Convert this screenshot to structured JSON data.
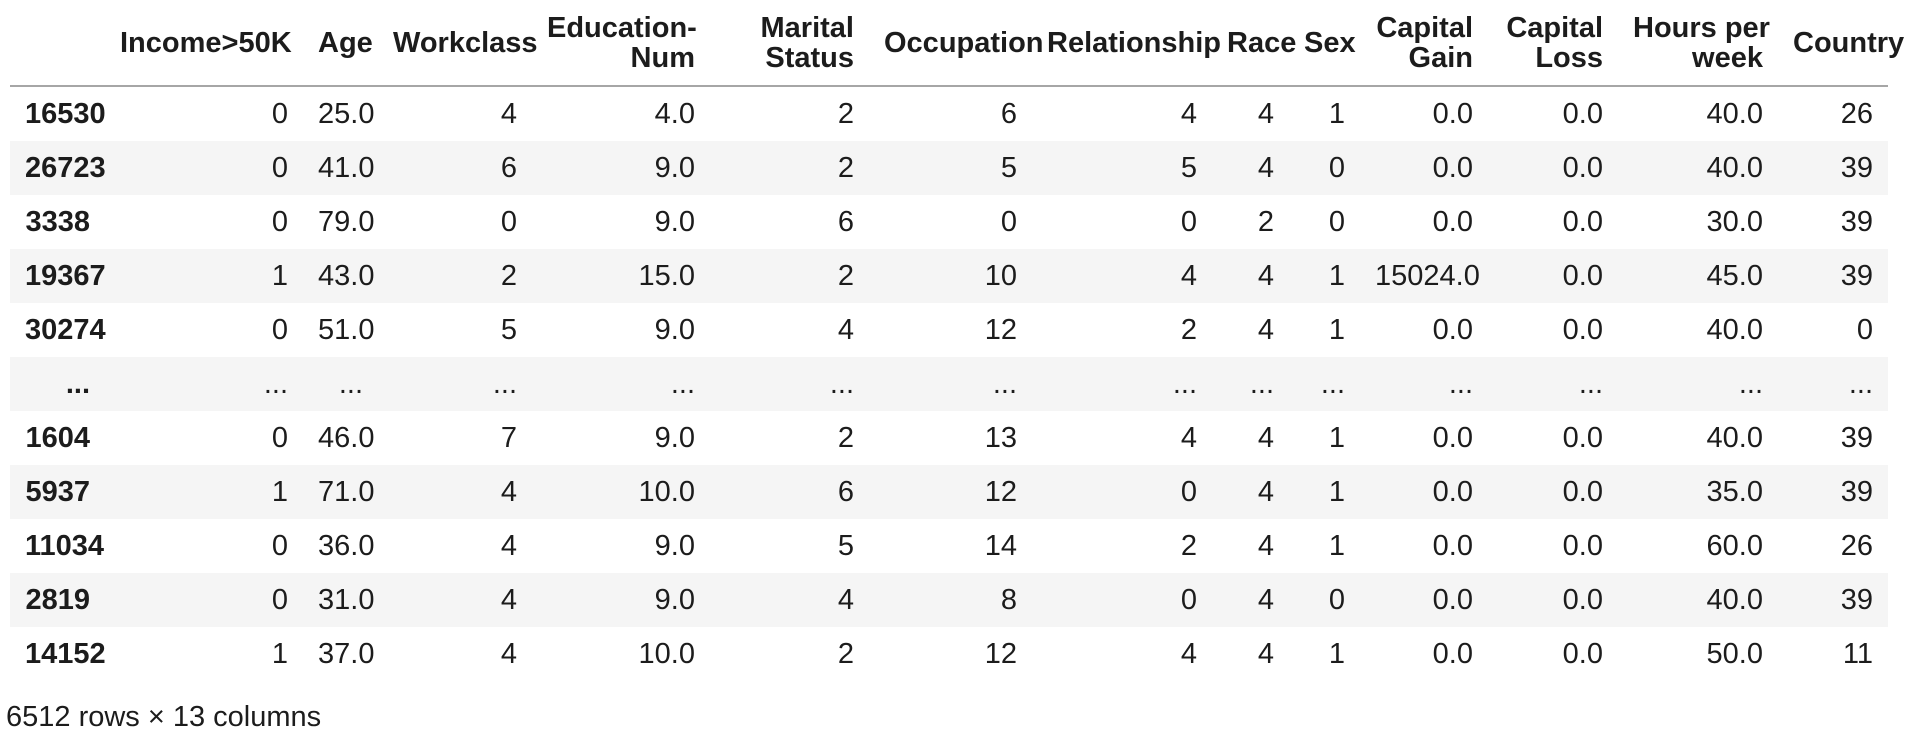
{
  "dataframe": {
    "index_header": "",
    "columns": [
      "Income>50K",
      "Age",
      "Workclass",
      "Education-\nNum",
      "Marital\nStatus",
      "Occupation",
      "Relationship",
      "Race",
      "Sex",
      "Capital\nGain",
      "Capital\nLoss",
      "Hours per\nweek",
      "Country"
    ],
    "rows": [
      {
        "index": "16530",
        "cells": [
          "0",
          "25.0",
          "4",
          "4.0",
          "2",
          "6",
          "4",
          "4",
          "1",
          "0.0",
          "0.0",
          "40.0",
          "26"
        ]
      },
      {
        "index": "26723",
        "cells": [
          "0",
          "41.0",
          "6",
          "9.0",
          "2",
          "5",
          "5",
          "4",
          "0",
          "0.0",
          "0.0",
          "40.0",
          "39"
        ]
      },
      {
        "index": "3338",
        "cells": [
          "0",
          "79.0",
          "0",
          "9.0",
          "6",
          "0",
          "0",
          "2",
          "0",
          "0.0",
          "0.0",
          "30.0",
          "39"
        ]
      },
      {
        "index": "19367",
        "cells": [
          "1",
          "43.0",
          "2",
          "15.0",
          "2",
          "10",
          "4",
          "4",
          "1",
          "15024.0",
          "0.0",
          "45.0",
          "39"
        ]
      },
      {
        "index": "30274",
        "cells": [
          "0",
          "51.0",
          "5",
          "9.0",
          "4",
          "12",
          "2",
          "4",
          "1",
          "0.0",
          "0.0",
          "40.0",
          "0"
        ]
      },
      {
        "index": "...",
        "cells": [
          "...",
          "...",
          "...",
          "...",
          "...",
          "...",
          "...",
          "...",
          "...",
          "...",
          "...",
          "...",
          "..."
        ]
      },
      {
        "index": "1604",
        "cells": [
          "0",
          "46.0",
          "7",
          "9.0",
          "2",
          "13",
          "4",
          "4",
          "1",
          "0.0",
          "0.0",
          "40.0",
          "39"
        ]
      },
      {
        "index": "5937",
        "cells": [
          "1",
          "71.0",
          "4",
          "10.0",
          "6",
          "12",
          "0",
          "4",
          "1",
          "0.0",
          "0.0",
          "35.0",
          "39"
        ]
      },
      {
        "index": "11034",
        "cells": [
          "0",
          "36.0",
          "4",
          "9.0",
          "5",
          "14",
          "2",
          "4",
          "1",
          "0.0",
          "0.0",
          "60.0",
          "26"
        ]
      },
      {
        "index": "2819",
        "cells": [
          "0",
          "31.0",
          "4",
          "9.0",
          "4",
          "8",
          "0",
          "4",
          "0",
          "0.0",
          "0.0",
          "40.0",
          "39"
        ]
      },
      {
        "index": "14152",
        "cells": [
          "1",
          "37.0",
          "4",
          "10.0",
          "2",
          "12",
          "4",
          "4",
          "1",
          "0.0",
          "0.0",
          "50.0",
          "11"
        ]
      }
    ],
    "footer": "6512 rows × 13 columns",
    "colors": {
      "text": "#1c1c1c",
      "row_stripe": "#f5f5f5",
      "header_border": "#a6a6a6",
      "background": "#ffffff"
    }
  }
}
